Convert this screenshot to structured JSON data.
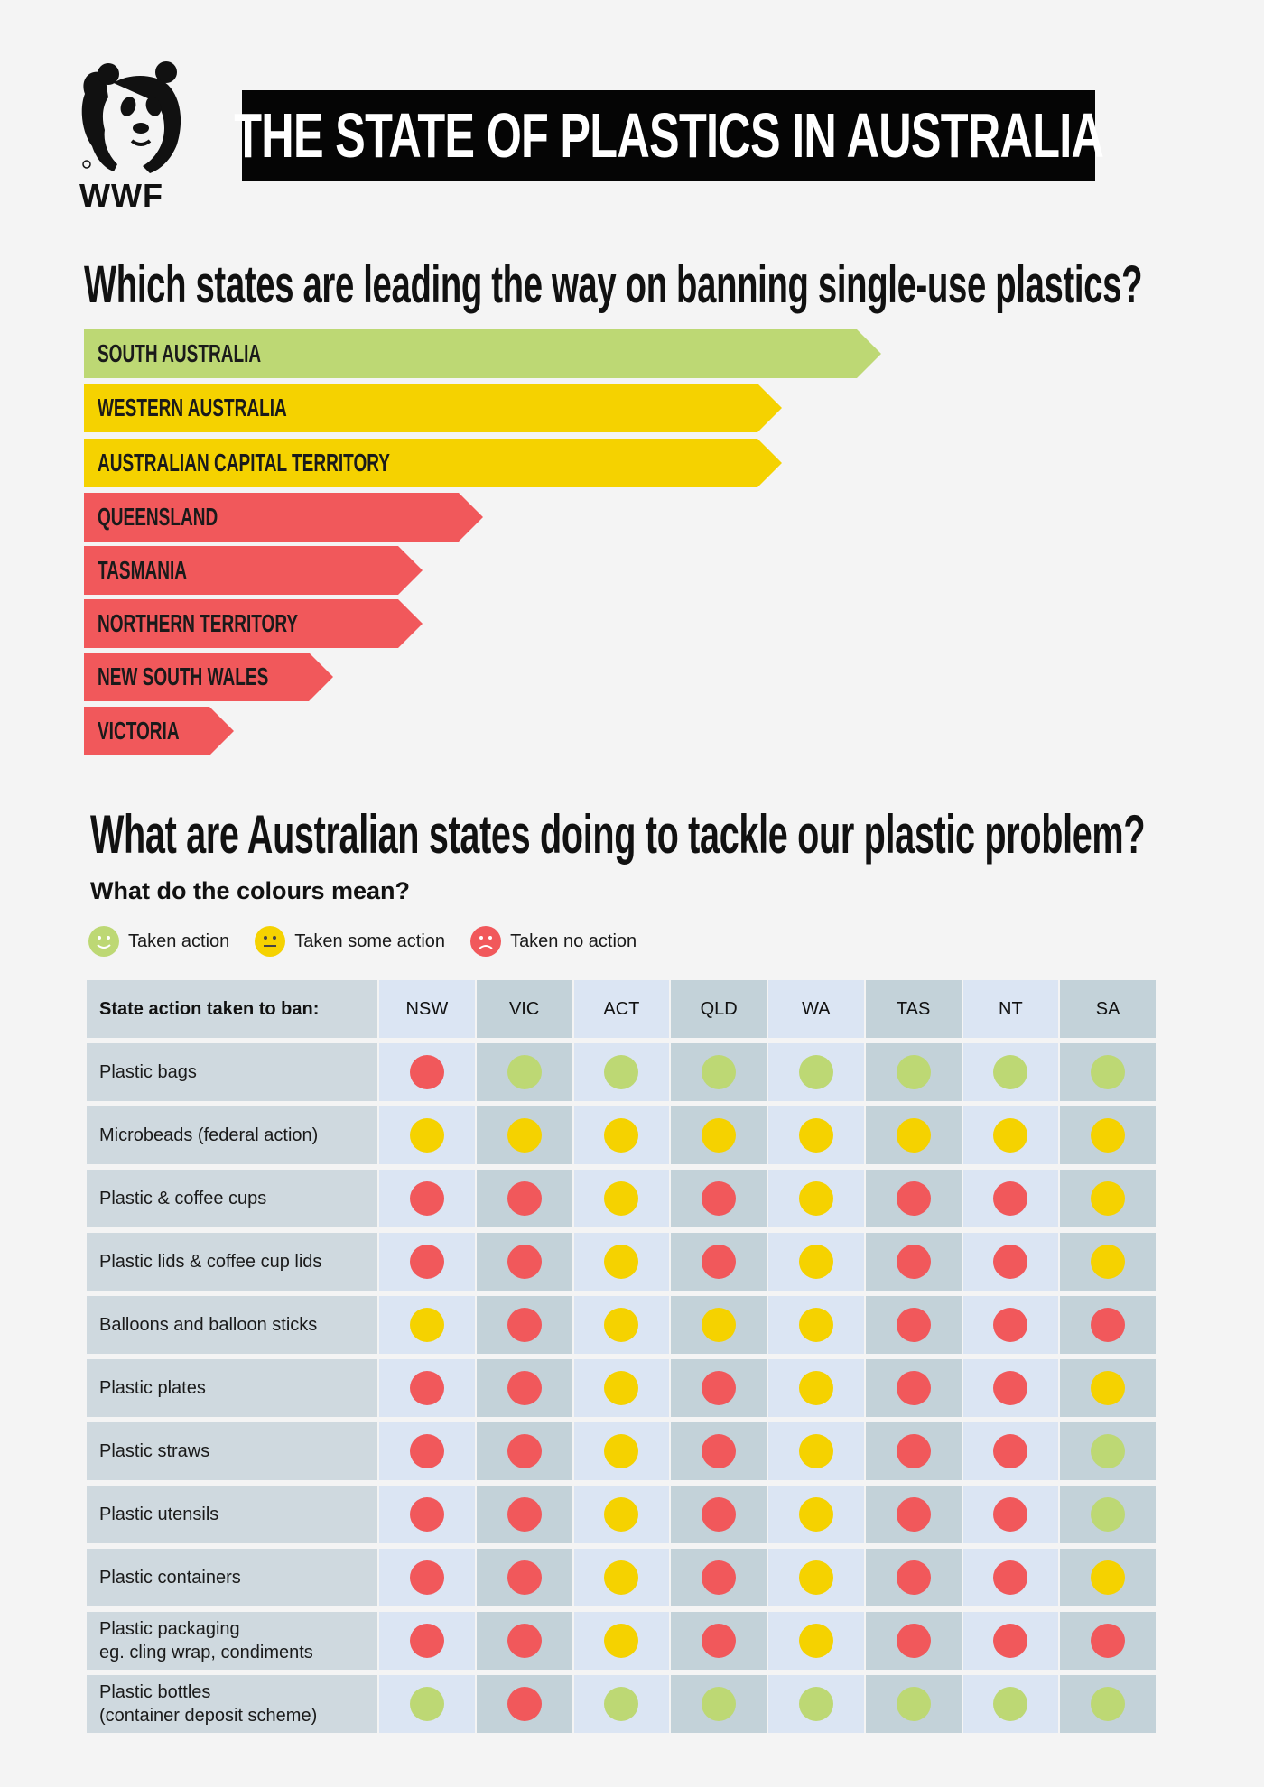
{
  "logo": {
    "text": "WWF"
  },
  "title": "THE STATE OF PLASTICS IN AUSTRALIA",
  "ranking": {
    "heading": "Which states are leading the way on banning single-use plastics?",
    "states": [
      {
        "name": "SOUTH AUSTRALIA",
        "status": "green",
        "rank_value": 8
      },
      {
        "name": "WESTERN AUSTRALIA",
        "status": "yellow",
        "rank_value": 7
      },
      {
        "name": "AUSTRALIAN CAPITAL TERRITORY",
        "status": "yellow",
        "rank_value": 7
      },
      {
        "name": "QUEENSLAND",
        "status": "red",
        "rank_value": 4
      },
      {
        "name": "TASMANIA",
        "status": "red",
        "rank_value": 3.4
      },
      {
        "name": "NORTHERN TERRITORY",
        "status": "red",
        "rank_value": 3.4
      },
      {
        "name": "NEW SOUTH WALES",
        "status": "red",
        "rank_value": 2.5
      },
      {
        "name": "VICTORIA",
        "status": "red",
        "rank_value": 1.5
      }
    ]
  },
  "section2": {
    "heading": "What are Australian states doing to tackle our plastic problem?",
    "legend_title": "What do the colours mean?",
    "legend": [
      {
        "label": "Taken action",
        "color": "#bdd874",
        "icon": "smile-face-icon"
      },
      {
        "label": "Taken some action",
        "color": "#f5d200",
        "icon": "neutral-face-icon"
      },
      {
        "label": "Taken no action",
        "color": "#f1585b",
        "icon": "sad-face-icon"
      }
    ]
  },
  "table": {
    "row_header": "State action taken to ban:",
    "columns": [
      "NSW",
      "VIC",
      "ACT",
      "QLD",
      "WA",
      "TAS",
      "NT",
      "SA"
    ],
    "rows": [
      {
        "label": "Plastic bags",
        "values": [
          "red",
          "green",
          "green",
          "green",
          "green",
          "green",
          "green",
          "green"
        ]
      },
      {
        "label": "Microbeads (federal action)",
        "values": [
          "yellow",
          "yellow",
          "yellow",
          "yellow",
          "yellow",
          "yellow",
          "yellow",
          "yellow"
        ]
      },
      {
        "label": "Plastic & coffee cups",
        "values": [
          "red",
          "red",
          "yellow",
          "red",
          "yellow",
          "red",
          "red",
          "yellow"
        ]
      },
      {
        "label": "Plastic lids & coffee cup lids",
        "values": [
          "red",
          "red",
          "yellow",
          "red",
          "yellow",
          "red",
          "red",
          "yellow"
        ]
      },
      {
        "label": "Balloons and balloon sticks",
        "values": [
          "yellow",
          "red",
          "yellow",
          "yellow",
          "yellow",
          "red",
          "red",
          "red"
        ]
      },
      {
        "label": "Plastic plates",
        "values": [
          "red",
          "red",
          "yellow",
          "red",
          "yellow",
          "red",
          "red",
          "yellow"
        ]
      },
      {
        "label": "Plastic straws",
        "values": [
          "red",
          "red",
          "yellow",
          "red",
          "yellow",
          "red",
          "red",
          "green"
        ]
      },
      {
        "label": "Plastic utensils",
        "values": [
          "red",
          "red",
          "yellow",
          "red",
          "yellow",
          "red",
          "red",
          "green"
        ]
      },
      {
        "label": "Plastic containers",
        "values": [
          "red",
          "red",
          "yellow",
          "red",
          "yellow",
          "red",
          "red",
          "yellow"
        ]
      },
      {
        "label": "Plastic packaging",
        "label2": "eg. cling wrap, condiments",
        "values": [
          "red",
          "red",
          "yellow",
          "red",
          "yellow",
          "red",
          "red",
          "red"
        ]
      },
      {
        "label": "Plastic bottles",
        "label2": "(container deposit scheme)",
        "values": [
          "green",
          "red",
          "green",
          "green",
          "green",
          "green",
          "green",
          "green"
        ]
      }
    ]
  },
  "colors": {
    "green": "#bdd874",
    "yellow": "#f5d200",
    "red": "#f1585b"
  }
}
